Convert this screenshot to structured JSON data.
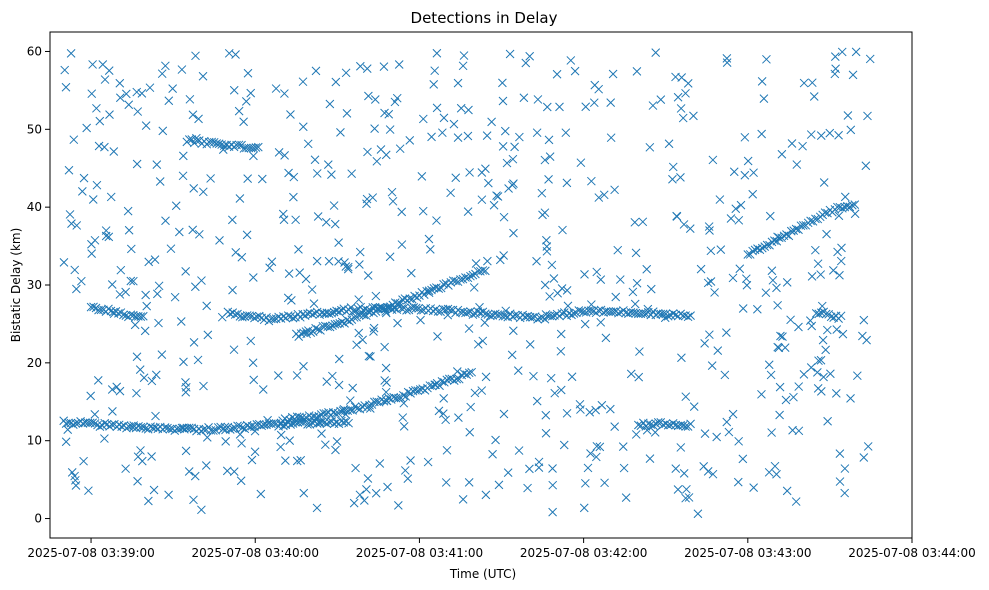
{
  "chart_data": {
    "type": "scatter",
    "title": "Detections in Delay",
    "xlabel": "Time (UTC)",
    "ylabel": "Bistatic Delay (km)",
    "marker": "x",
    "color": "#1f77b4",
    "grid": false,
    "legend": "none",
    "x_ticks": [
      "2025-07-08 03:39:00",
      "2025-07-08 03:40:00",
      "2025-07-08 03:41:00",
      "2025-07-08 03:42:00",
      "2025-07-08 03:43:00",
      "2025-07-08 03:44:00"
    ],
    "y_ticks": [
      0,
      10,
      20,
      30,
      40,
      50,
      60
    ],
    "xlim": [
      "2025-07-08 03:38:45",
      "2025-07-08 03:44:00"
    ],
    "ylim": [
      -2.5,
      62.5
    ],
    "tracks": [
      {
        "name_hint": "",
        "points": [
          [
            "2025-07-08 03:38:50",
            12.4
          ],
          [
            "2025-07-08 03:39:05",
            12.0
          ],
          [
            "2025-07-08 03:39:20",
            11.6
          ],
          [
            "2025-07-08 03:39:35",
            11.4
          ],
          [
            "2025-07-08 03:39:50",
            11.6
          ],
          [
            "2025-07-08 03:40:05",
            12.0
          ],
          [
            "2025-07-08 03:40:20",
            12.3
          ],
          [
            "2025-07-08 03:40:35",
            12.3
          ]
        ]
      },
      {
        "name_hint": "",
        "points": [
          [
            "2025-07-08 03:40:10",
            12.6
          ],
          [
            "2025-07-08 03:40:25",
            13.3
          ],
          [
            "2025-07-08 03:40:40",
            14.4
          ],
          [
            "2025-07-08 03:40:55",
            15.9
          ],
          [
            "2025-07-08 03:41:10",
            17.6
          ],
          [
            "2025-07-08 03:41:20",
            18.8
          ]
        ]
      },
      {
        "name_hint": "",
        "points": [
          [
            "2025-07-08 03:39:35",
            48.5
          ],
          [
            "2025-07-08 03:39:45",
            48.2
          ],
          [
            "2025-07-08 03:39:55",
            47.8
          ],
          [
            "2025-07-08 03:40:02",
            47.5
          ]
        ]
      },
      {
        "name_hint": "",
        "points": [
          [
            "2025-07-08 03:39:00",
            27.2
          ],
          [
            "2025-07-08 03:39:10",
            26.4
          ],
          [
            "2025-07-08 03:39:20",
            25.7
          ]
        ]
      },
      {
        "name_hint": "",
        "points": [
          [
            "2025-07-08 03:39:50",
            26.3
          ],
          [
            "2025-07-08 03:40:05",
            25.6
          ],
          [
            "2025-07-08 03:40:20",
            26.2
          ],
          [
            "2025-07-08 03:40:35",
            26.9
          ],
          [
            "2025-07-08 03:40:50",
            27.0
          ],
          [
            "2025-07-08 03:41:05",
            26.8
          ],
          [
            "2025-07-08 03:41:25",
            26.3
          ],
          [
            "2025-07-08 03:41:45",
            25.8
          ],
          [
            "2025-07-08 03:42:00",
            26.6
          ],
          [
            "2025-07-08 03:42:20",
            26.5
          ],
          [
            "2025-07-08 03:42:40",
            26.0
          ]
        ]
      },
      {
        "name_hint": "",
        "points": [
          [
            "2025-07-08 03:40:15",
            23.5
          ],
          [
            "2025-07-08 03:40:30",
            25.0
          ],
          [
            "2025-07-08 03:40:45",
            26.8
          ],
          [
            "2025-07-08 03:41:00",
            28.7
          ],
          [
            "2025-07-08 03:41:15",
            30.7
          ],
          [
            "2025-07-08 03:41:25",
            32.0
          ]
        ]
      },
      {
        "name_hint": "",
        "points": [
          [
            "2025-07-08 03:42:20",
            12.0
          ],
          [
            "2025-07-08 03:42:30",
            12.2
          ],
          [
            "2025-07-08 03:42:40",
            12.0
          ]
        ]
      },
      {
        "name_hint": "",
        "points": [
          [
            "2025-07-08 03:43:00",
            34.0
          ],
          [
            "2025-07-08 03:43:15",
            36.5
          ],
          [
            "2025-07-08 03:43:30",
            39.5
          ],
          [
            "2025-07-08 03:43:40",
            40.5
          ]
        ]
      },
      {
        "name_hint": "",
        "points": [
          [
            "2025-07-08 03:43:25",
            26.5
          ],
          [
            "2025-07-08 03:43:35",
            25.8
          ]
        ]
      }
    ],
    "clutter_count": 700,
    "clutter_seed": 1337
  }
}
